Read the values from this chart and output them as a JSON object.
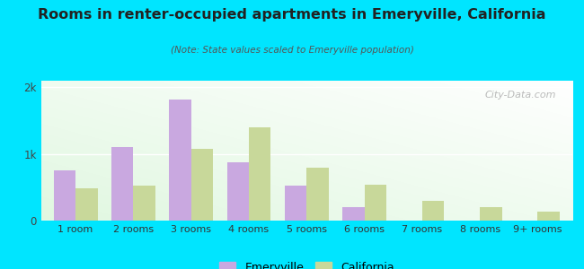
{
  "title": "Rooms in renter-occupied apartments in Emeryville, California",
  "subtitle": "(Note: State values scaled to Emeryville population)",
  "categories": [
    "1 room",
    "2 rooms",
    "3 rooms",
    "4 rooms",
    "5 rooms",
    "6 rooms",
    "7 rooms",
    "8 rooms",
    "9+ rooms"
  ],
  "emeryville": [
    750,
    1100,
    1820,
    870,
    520,
    200,
    0,
    0,
    0
  ],
  "california": [
    480,
    530,
    1080,
    1400,
    790,
    540,
    290,
    200,
    130
  ],
  "emeryville_color": "#c9a8e0",
  "california_color": "#c8d89a",
  "background_outer": "#00e5ff",
  "yticks": [
    0,
    1000,
    2000
  ],
  "ytick_labels": [
    "0",
    "1k",
    "2k"
  ],
  "ylim": [
    0,
    2100
  ],
  "bar_width": 0.38,
  "legend_emeryville": "Emeryville",
  "legend_california": "California",
  "watermark": "City-Data.com"
}
